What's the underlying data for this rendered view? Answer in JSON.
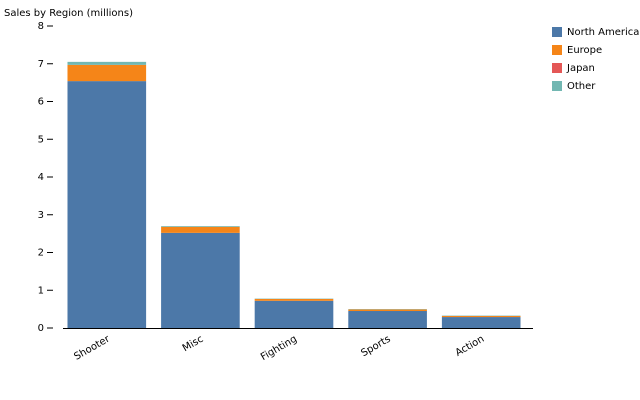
{
  "chart_data": {
    "type": "bar",
    "stacked": true,
    "title": "Sales by Region (millions)",
    "categories": [
      "Shooter",
      "Misc",
      "Fighting",
      "Sports",
      "Action"
    ],
    "series": [
      {
        "name": "North America",
        "color": "#4c78a8",
        "values": [
          6.54,
          2.52,
          0.72,
          0.45,
          0.29
        ]
      },
      {
        "name": "Europe",
        "color": "#f58518",
        "values": [
          0.43,
          0.16,
          0.05,
          0.04,
          0.03
        ]
      },
      {
        "name": "Japan",
        "color": "#e45756",
        "values": [
          0,
          0,
          0,
          0,
          0
        ]
      },
      {
        "name": "Other",
        "color": "#72b7b2",
        "values": [
          0.08,
          0.02,
          0.01,
          0.01,
          0.01
        ]
      }
    ],
    "ylim": [
      0,
      8
    ],
    "yticks": [
      0,
      1,
      2,
      3,
      4,
      5,
      6,
      7,
      8
    ],
    "legend": "top-right"
  }
}
